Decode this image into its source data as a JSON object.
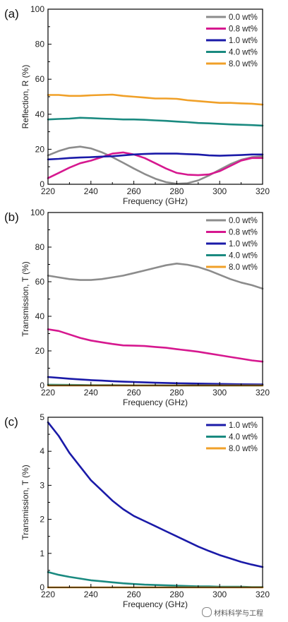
{
  "chart_data": [
    {
      "type": "line",
      "panel_label": "(a)",
      "xlabel": "Frequency (GHz)",
      "ylabel": "Reflection, R (%)",
      "xlim": [
        220,
        320
      ],
      "ylim": [
        0,
        100
      ],
      "xticks": [
        220,
        240,
        260,
        280,
        300,
        320
      ],
      "yticks": [
        0,
        20,
        40,
        60,
        80,
        100
      ],
      "legend_position": "top-right",
      "grid": false,
      "x": [
        220,
        225,
        230,
        235,
        240,
        245,
        250,
        255,
        260,
        265,
        270,
        275,
        280,
        285,
        290,
        295,
        300,
        305,
        310,
        315,
        320
      ],
      "series": [
        {
          "name": "0.0 wt%",
          "color": "#8c8c8c",
          "values": [
            16.5,
            19,
            20.8,
            21.5,
            20.5,
            18.3,
            15.5,
            12.3,
            9,
            5.9,
            3.2,
            1.2,
            0.3,
            0.6,
            2.2,
            5,
            8.3,
            11.5,
            14,
            15.5,
            16
          ]
        },
        {
          "name": "0.8 wt%",
          "color": "#d6188f",
          "values": [
            3.5,
            6.5,
            9.5,
            12,
            13.5,
            15.5,
            17.5,
            18.2,
            17,
            15,
            12,
            9,
            6.5,
            5.5,
            5.2,
            5.6,
            7.5,
            10.5,
            13.5,
            15,
            15
          ]
        },
        {
          "name": "1.0 wt%",
          "color": "#1a1aa8",
          "values": [
            14.2,
            14.5,
            15,
            15.3,
            15.5,
            15.8,
            16,
            16.5,
            17,
            17.3,
            17.5,
            17.5,
            17.5,
            17.2,
            17,
            16.5,
            16.3,
            16.5,
            16.7,
            17,
            17
          ]
        },
        {
          "name": "4.0 wt%",
          "color": "#1a8a80",
          "values": [
            37,
            37.3,
            37.5,
            38,
            37.8,
            37.5,
            37.3,
            37,
            37,
            36.8,
            36.5,
            36.2,
            35.8,
            35.5,
            35,
            34.8,
            34.5,
            34.2,
            34,
            33.8,
            33.5
          ]
        },
        {
          "name": "8.0 wt%",
          "color": "#f0a028",
          "values": [
            51,
            51,
            50.5,
            50.5,
            50.8,
            51,
            51.2,
            50.5,
            50,
            49.5,
            49,
            49,
            48.8,
            48,
            47.5,
            47,
            46.5,
            46.5,
            46.2,
            46,
            45.5
          ]
        }
      ]
    },
    {
      "type": "line",
      "panel_label": "(b)",
      "xlabel": "Frequency (GHz)",
      "ylabel": "Transmission, T (%)",
      "xlim": [
        220,
        320
      ],
      "ylim": [
        0,
        100
      ],
      "xticks": [
        220,
        240,
        260,
        280,
        300,
        320
      ],
      "yticks": [
        0,
        20,
        40,
        60,
        80,
        100
      ],
      "legend_position": "top-right",
      "grid": false,
      "x": [
        220,
        225,
        230,
        235,
        240,
        245,
        250,
        255,
        260,
        265,
        270,
        275,
        280,
        285,
        290,
        295,
        300,
        305,
        310,
        315,
        320
      ],
      "series": [
        {
          "name": "0.0 wt%",
          "color": "#8c8c8c",
          "values": [
            63.5,
            62.5,
            61.5,
            61,
            61,
            61.5,
            62.5,
            63.5,
            65,
            66.5,
            68,
            69.5,
            70.5,
            69.8,
            68.5,
            66.5,
            64,
            61.5,
            59.5,
            58,
            56
          ]
        },
        {
          "name": "0.8 wt%",
          "color": "#d6188f",
          "values": [
            32.5,
            31.5,
            29.5,
            27.5,
            26,
            25,
            24,
            23.2,
            23,
            22.8,
            22.3,
            21.8,
            21,
            20.3,
            19.5,
            18.5,
            17.5,
            16.5,
            15.5,
            14.5,
            13.8
          ]
        },
        {
          "name": "1.0 wt%",
          "color": "#1a1aa8",
          "values": [
            4.9,
            4.4,
            3.9,
            3.5,
            3.1,
            2.8,
            2.5,
            2.2,
            2,
            1.8,
            1.6,
            1.45,
            1.3,
            1.2,
            1.1,
            1,
            0.9,
            0.8,
            0.7,
            0.65,
            0.6
          ]
        },
        {
          "name": "4.0 wt%",
          "color": "#1a8a80",
          "values": [
            0.45,
            0.38,
            0.32,
            0.27,
            0.22,
            0.18,
            0.15,
            0.12,
            0.1,
            0.08,
            0.07,
            0.06,
            0.05,
            0.04,
            0.03,
            0.03,
            0.02,
            0.02,
            0.02,
            0.01,
            0.01
          ]
        },
        {
          "name": "8.0 wt%",
          "color": "#f0a028",
          "values": [
            0,
            0,
            0,
            0,
            0,
            0,
            0,
            0,
            0,
            0,
            0,
            0,
            0,
            0,
            0,
            0,
            0,
            0,
            0,
            0,
            0
          ]
        }
      ]
    },
    {
      "type": "line",
      "panel_label": "(c)",
      "xlabel": "Frequency (GHz)",
      "ylabel": "Transmission, T (%)",
      "xlim": [
        220,
        320
      ],
      "ylim": [
        0,
        5
      ],
      "xticks": [
        220,
        240,
        260,
        280,
        300,
        320
      ],
      "yticks": [
        0,
        1,
        2,
        3,
        4,
        5
      ],
      "legend_position": "top-right",
      "grid": false,
      "x": [
        220,
        225,
        230,
        235,
        240,
        245,
        250,
        255,
        260,
        265,
        270,
        275,
        280,
        285,
        290,
        295,
        300,
        305,
        310,
        315,
        320
      ],
      "series": [
        {
          "name": "1.0 wt%",
          "color": "#1a1aa8",
          "values": [
            4.85,
            4.45,
            3.95,
            3.55,
            3.15,
            2.85,
            2.55,
            2.3,
            2.1,
            1.95,
            1.8,
            1.65,
            1.5,
            1.35,
            1.2,
            1.07,
            0.95,
            0.85,
            0.75,
            0.67,
            0.6
          ]
        },
        {
          "name": "4.0 wt%",
          "color": "#1a8a80",
          "values": [
            0.45,
            0.37,
            0.31,
            0.26,
            0.21,
            0.18,
            0.15,
            0.12,
            0.1,
            0.08,
            0.07,
            0.06,
            0.05,
            0.04,
            0.03,
            0.03,
            0.02,
            0.02,
            0.02,
            0.01,
            0.01
          ]
        },
        {
          "name": "8.0 wt%",
          "color": "#f0a028",
          "values": [
            0,
            0,
            0,
            0,
            0,
            0,
            0,
            0,
            0,
            0,
            0,
            0,
            0,
            0,
            0,
            0,
            0,
            0,
            0,
            0,
            0
          ]
        }
      ]
    }
  ],
  "watermark": {
    "text": "材料科学与工程",
    "icon": "wechat-icon"
  }
}
